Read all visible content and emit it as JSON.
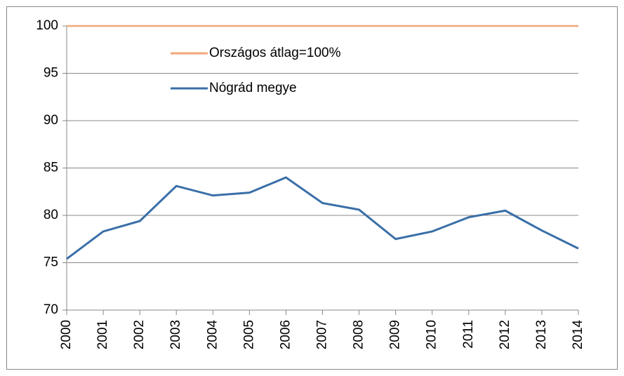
{
  "chart_data": {
    "type": "line",
    "x": [
      2000,
      2001,
      2002,
      2003,
      2004,
      2005,
      2006,
      2007,
      2008,
      2009,
      2010,
      2011,
      2012,
      2013,
      2014
    ],
    "series": [
      {
        "name": "Országos átlag=100%",
        "color": "#f4a77a",
        "values": [
          100,
          100,
          100,
          100,
          100,
          100,
          100,
          100,
          100,
          100,
          100,
          100,
          100,
          100,
          100
        ]
      },
      {
        "name": "Nógrád megye",
        "color": "#3a6fa8",
        "values": [
          75.4,
          78.3,
          79.4,
          83.1,
          82.1,
          82.4,
          84.0,
          81.3,
          80.6,
          77.5,
          78.3,
          79.8,
          80.5,
          78.4,
          76.5
        ]
      }
    ],
    "xlim": [
      2000,
      2014
    ],
    "xticks": [
      2000,
      2001,
      2002,
      2003,
      2004,
      2005,
      2006,
      2007,
      2008,
      2009,
      2010,
      2011,
      2012,
      2013,
      2014
    ],
    "ylim": [
      70,
      100
    ],
    "yticks": [
      70,
      75,
      80,
      85,
      90,
      95,
      100
    ],
    "grid": true,
    "legend": "top-left"
  }
}
